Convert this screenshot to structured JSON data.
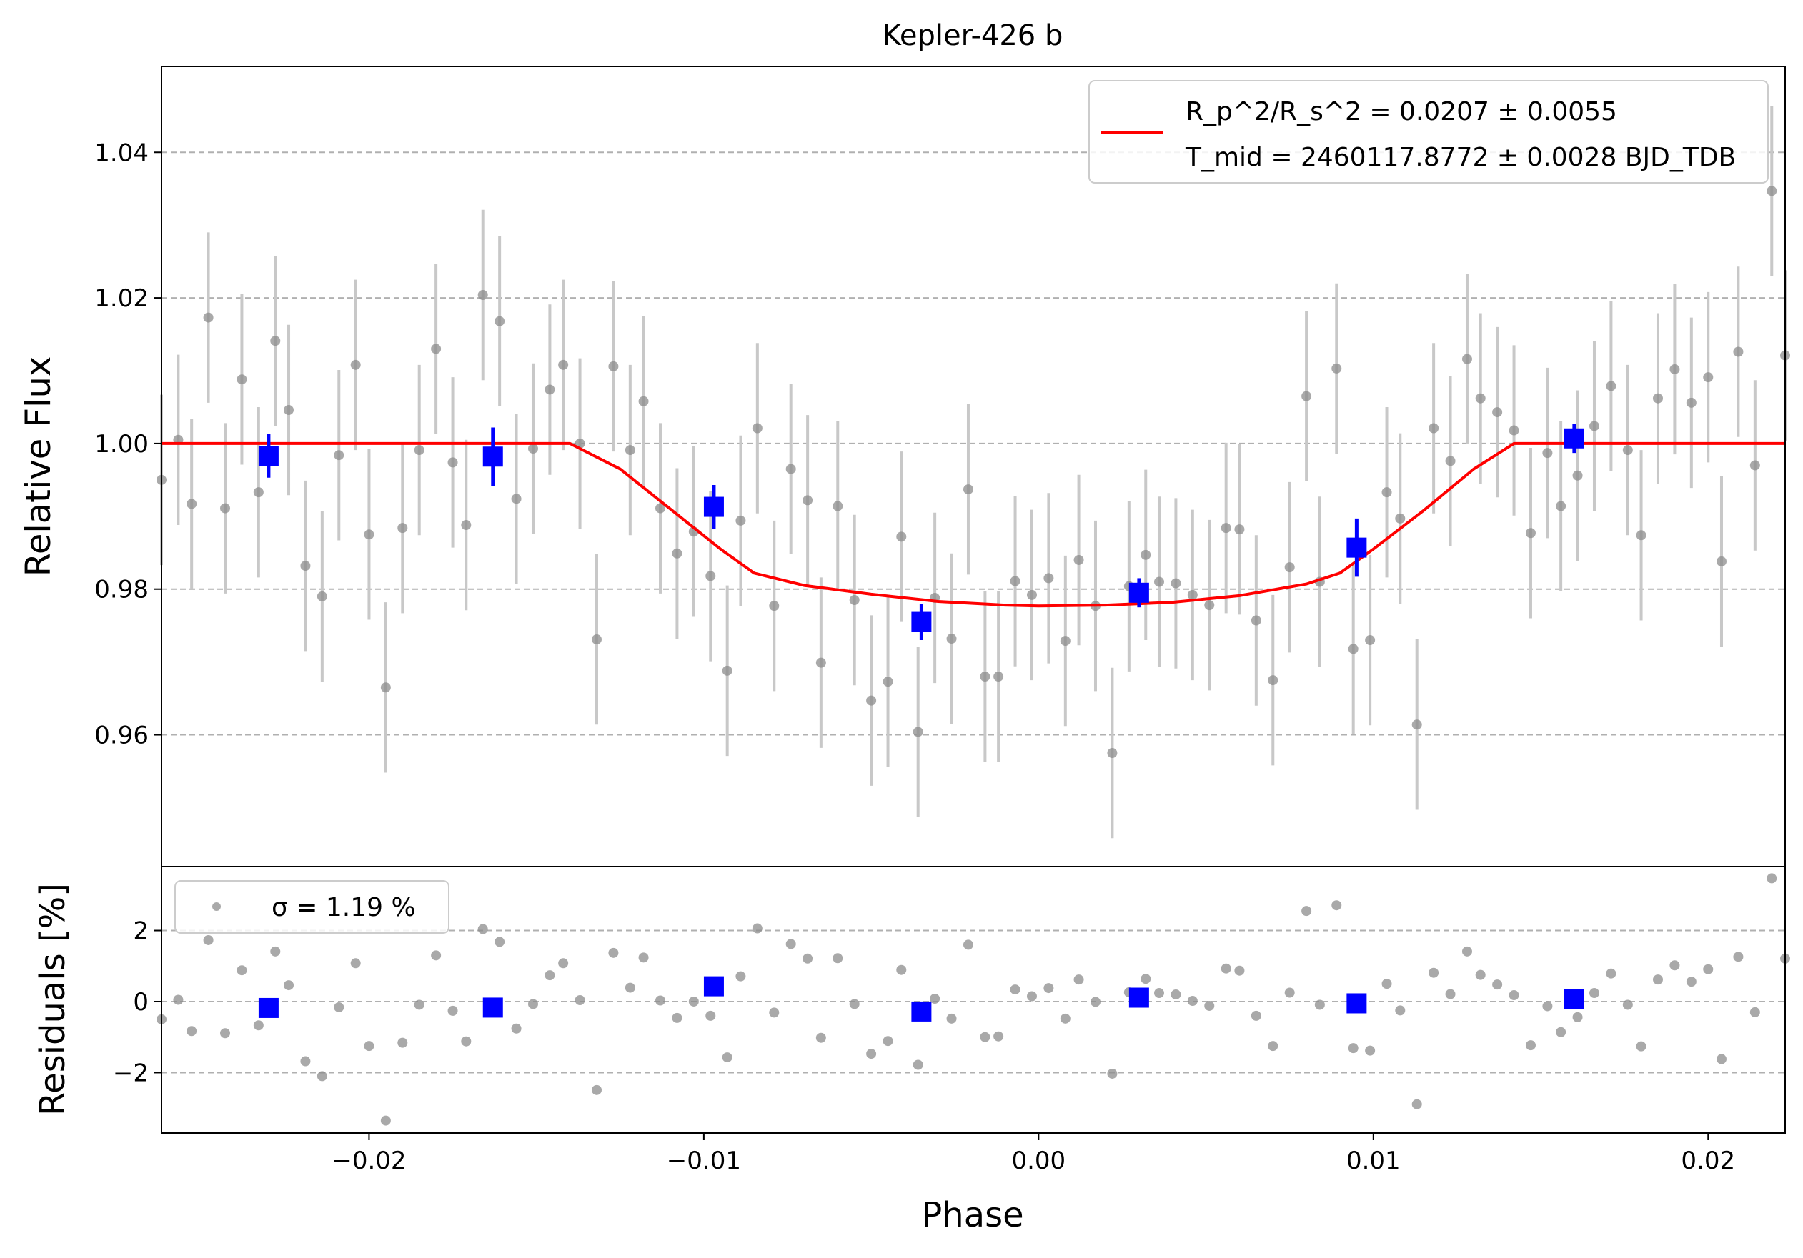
{
  "colors": {
    "raw_point": "#8c8c8c",
    "raw_errorbar": "#c8c8c8",
    "binned": "#0000ff",
    "model": "#ff0000",
    "grid": "#b0b0b0"
  },
  "chart_data": [
    {
      "type": "scatter",
      "panel": "main",
      "title": "Kepler-426 b",
      "xlabel": "",
      "ylabel": "Relative Flux",
      "xlim": [
        -0.0262,
        0.0223
      ],
      "ylim": [
        0.9419,
        1.0518
      ],
      "yticks": [
        0.96,
        0.98,
        1.0,
        1.02,
        1.04
      ],
      "ytick_labels": [
        "0.96",
        "0.98",
        "1.00",
        "1.02",
        "1.04"
      ],
      "grid": "y-dashed",
      "legend": {
        "placement": "top-right",
        "line1": "R_p^2/R_s^2 = 0.0207 ± 0.0055",
        "line2": "T_mid = 2460117.8772 ± 0.0028 BJD_TDB"
      },
      "raw": {
        "x": [
          -0.0262,
          -0.0257,
          -0.0253,
          -0.0248,
          -0.0243,
          -0.0238,
          -0.0233,
          -0.0228,
          -0.0224,
          -0.0219,
          -0.0214,
          -0.0209,
          -0.0204,
          -0.02,
          -0.0195,
          -0.019,
          -0.0185,
          -0.018,
          -0.0175,
          -0.0171,
          -0.0166,
          -0.0161,
          -0.0156,
          -0.0151,
          -0.0146,
          -0.0142,
          -0.0137,
          -0.0132,
          -0.0127,
          -0.0122,
          -0.0118,
          -0.0113,
          -0.0108,
          -0.0103,
          -0.0098,
          -0.0093,
          -0.0089,
          -0.0084,
          -0.0079,
          -0.0074,
          -0.0069,
          -0.0065,
          -0.006,
          -0.0055,
          -0.005,
          -0.0045,
          -0.0041,
          -0.0036,
          -0.0031,
          -0.0026,
          -0.0021,
          -0.0016,
          -0.0012,
          -0.0007,
          -0.0002,
          0.0003,
          0.0008,
          0.0012,
          0.0017,
          0.0022,
          0.0027,
          0.0032,
          0.0036,
          0.0041,
          0.0046,
          0.0051,
          0.0056,
          0.006,
          0.0065,
          0.007,
          0.0075,
          0.008,
          0.0084,
          0.0089,
          0.0094,
          0.0099,
          0.0104,
          0.0108,
          0.0113,
          0.0118,
          0.0123,
          0.0128,
          0.0132,
          0.0137,
          0.0142,
          0.0147,
          0.0152,
          0.0156,
          0.0161,
          0.0166,
          0.0171,
          0.0176,
          0.018,
          0.0185,
          0.019,
          0.0195,
          0.02,
          0.0204,
          0.0209,
          0.0214,
          0.0219,
          0.0223
        ],
        "y": [
          0.995,
          1.0005,
          0.9917,
          1.0173,
          0.9911,
          1.0088,
          0.9933,
          1.0141,
          1.0046,
          0.9832,
          0.979,
          0.9984,
          1.0108,
          0.9875,
          0.9665,
          0.9884,
          0.9991,
          1.013,
          0.9974,
          0.9888,
          1.0204,
          1.0168,
          0.9924,
          0.9993,
          1.0074,
          1.0108,
          1.0,
          0.9731,
          1.0106,
          0.9991,
          1.0058,
          0.9911,
          0.9849,
          0.9879,
          0.9818,
          0.9688,
          0.9894,
          1.0021,
          0.9777,
          0.9965,
          0.9922,
          0.9699,
          0.9914,
          0.9785,
          0.9647,
          0.9673,
          0.9872,
          0.9604,
          0.9788,
          0.9732,
          0.9937,
          0.968,
          0.968,
          0.9811,
          0.9792,
          0.9815,
          0.9729,
          0.984,
          0.9777,
          0.9575,
          0.9804,
          0.9847,
          0.981,
          0.9808,
          0.9792,
          0.9778,
          0.9884,
          0.9882,
          0.9757,
          0.9675,
          0.983,
          1.0065,
          0.981,
          1.0103,
          0.9718,
          0.973,
          0.9933,
          0.9897,
          0.9614,
          1.0021,
          0.9976,
          1.0116,
          1.0062,
          1.0043,
          1.0018,
          0.9877,
          0.9987,
          0.9914,
          0.9956,
          1.0024,
          1.0079,
          0.9991,
          0.9874,
          1.0062,
          1.0102,
          1.0056,
          1.0091,
          0.9838,
          1.0126,
          0.997,
          1.0347,
          1.0121
        ],
        "yerr": 0.0117
      },
      "binned": {
        "x": [
          -0.023,
          -0.0163,
          -0.0097,
          -0.0035,
          0.003,
          0.0095,
          0.016
        ],
        "y": [
          0.9983,
          0.9982,
          0.9913,
          0.9755,
          0.9795,
          0.9857,
          1.0007
        ],
        "yerr": [
          0.003,
          0.004,
          0.003,
          0.0025,
          0.002,
          0.004,
          0.002
        ]
      },
      "model": {
        "x": [
          -0.0262,
          -0.014,
          -0.0125,
          -0.011,
          -0.0095,
          -0.0085,
          -0.007,
          -0.005,
          -0.003,
          -0.001,
          0.0,
          0.002,
          0.004,
          0.006,
          0.008,
          0.009,
          0.01,
          0.0115,
          0.013,
          0.0142,
          0.0223
        ],
        "y": [
          1.0,
          1.0,
          0.9965,
          0.991,
          0.9855,
          0.9822,
          0.9805,
          0.9793,
          0.9783,
          0.9778,
          0.9777,
          0.9778,
          0.9782,
          0.9791,
          0.9807,
          0.9822,
          0.9855,
          0.9908,
          0.9965,
          1.0,
          1.0
        ]
      }
    },
    {
      "type": "scatter",
      "panel": "residuals",
      "xlabel": "Phase",
      "ylabel": "Residuals [%]",
      "xlim": [
        -0.0262,
        0.0223
      ],
      "ylim": [
        -3.7,
        3.8
      ],
      "xticks": [
        -0.02,
        -0.01,
        0.0,
        0.01,
        0.02
      ],
      "xtick_labels": [
        "−0.02",
        "−0.01",
        "0.00",
        "0.01",
        "0.02"
      ],
      "yticks": [
        -2,
        0,
        2
      ],
      "ytick_labels": [
        "−2",
        "0",
        "2"
      ],
      "grid": "y-dashed",
      "legend": {
        "placement": "top-left",
        "label": "σ = 1.19 %"
      },
      "raw": {
        "x": [
          -0.0262,
          -0.0257,
          -0.0253,
          -0.0248,
          -0.0243,
          -0.0238,
          -0.0233,
          -0.0228,
          -0.0224,
          -0.0219,
          -0.0214,
          -0.0209,
          -0.0204,
          -0.02,
          -0.0195,
          -0.019,
          -0.0185,
          -0.018,
          -0.0175,
          -0.0171,
          -0.0166,
          -0.0161,
          -0.0156,
          -0.0151,
          -0.0146,
          -0.0142,
          -0.0137,
          -0.0132,
          -0.0127,
          -0.0122,
          -0.0118,
          -0.0113,
          -0.0108,
          -0.0103,
          -0.0098,
          -0.0093,
          -0.0089,
          -0.0084,
          -0.0079,
          -0.0074,
          -0.0069,
          -0.0065,
          -0.006,
          -0.0055,
          -0.005,
          -0.0045,
          -0.0041,
          -0.0036,
          -0.0031,
          -0.0026,
          -0.0021,
          -0.0016,
          -0.0012,
          -0.0007,
          -0.0002,
          0.0003,
          0.0008,
          0.0012,
          0.0017,
          0.0022,
          0.0027,
          0.0032,
          0.0036,
          0.0041,
          0.0046,
          0.0051,
          0.0056,
          0.006,
          0.0065,
          0.007,
          0.0075,
          0.008,
          0.0084,
          0.0089,
          0.0094,
          0.0099,
          0.0104,
          0.0108,
          0.0113,
          0.0118,
          0.0123,
          0.0128,
          0.0132,
          0.0137,
          0.0142,
          0.0147,
          0.0152,
          0.0156,
          0.0161,
          0.0166,
          0.0171,
          0.0176,
          0.018,
          0.0185,
          0.019,
          0.0195,
          0.02,
          0.0204,
          0.0209,
          0.0214,
          0.0219,
          0.0223
        ],
        "y": [
          -0.5,
          0.05,
          -0.83,
          1.73,
          -0.89,
          0.88,
          -0.67,
          1.41,
          0.46,
          -1.68,
          -2.1,
          -0.16,
          1.08,
          -1.25,
          -3.35,
          -1.16,
          -0.09,
          1.3,
          -0.26,
          -1.12,
          2.04,
          1.68,
          -0.76,
          -0.07,
          0.74,
          1.08,
          0.04,
          -2.49,
          1.37,
          0.39,
          1.24,
          0.03,
          -0.46,
          0.0,
          -0.4,
          -1.57,
          0.71,
          2.06,
          -0.31,
          1.62,
          1.21,
          -1.02,
          1.22,
          -0.07,
          -1.47,
          -1.11,
          0.89,
          -1.78,
          0.08,
          -0.48,
          1.6,
          -1.0,
          -0.98,
          0.34,
          0.15,
          0.38,
          -0.48,
          0.62,
          -0.01,
          -2.03,
          0.26,
          0.64,
          0.24,
          0.2,
          0.02,
          -0.12,
          0.93,
          0.87,
          -0.4,
          -1.25,
          0.25,
          2.55,
          -0.09,
          2.71,
          -1.31,
          -1.38,
          0.5,
          -0.25,
          -2.89,
          0.81,
          0.21,
          1.41,
          0.75,
          0.48,
          0.18,
          -1.23,
          -0.13,
          -0.86,
          -0.44,
          0.24,
          0.79,
          -0.09,
          -1.26,
          0.62,
          1.02,
          0.56,
          0.91,
          -1.62,
          1.26,
          -0.3,
          3.47,
          1.21
        ]
      },
      "binned": {
        "x": [
          -0.023,
          -0.0163,
          -0.0097,
          -0.0035,
          0.003,
          0.0095,
          0.016
        ],
        "y": [
          -0.18,
          -0.17,
          0.43,
          -0.28,
          0.11,
          -0.05,
          0.08
        ]
      }
    }
  ]
}
